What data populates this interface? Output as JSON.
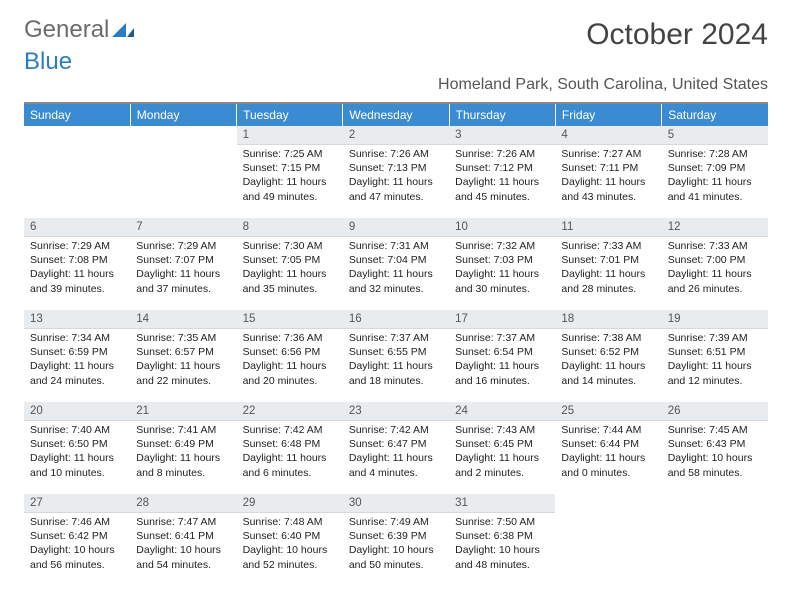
{
  "logo": {
    "word1": "General",
    "word2": "Blue"
  },
  "title": "October 2024",
  "location": "Homeland Park, South Carolina, United States",
  "colors": {
    "header_bg": "#3a8bd1",
    "header_text": "#ffffff",
    "daynum_bg": "#e9ecef",
    "body_text": "#222222",
    "logo_gray": "#6b6b6b",
    "logo_blue": "#2d7bc4"
  },
  "day_headers": [
    "Sunday",
    "Monday",
    "Tuesday",
    "Wednesday",
    "Thursday",
    "Friday",
    "Saturday"
  ],
  "weeks": [
    [
      null,
      null,
      {
        "n": "1",
        "sr": "7:25 AM",
        "ss": "7:15 PM",
        "dl": "11 hours and 49 minutes."
      },
      {
        "n": "2",
        "sr": "7:26 AM",
        "ss": "7:13 PM",
        "dl": "11 hours and 47 minutes."
      },
      {
        "n": "3",
        "sr": "7:26 AM",
        "ss": "7:12 PM",
        "dl": "11 hours and 45 minutes."
      },
      {
        "n": "4",
        "sr": "7:27 AM",
        "ss": "7:11 PM",
        "dl": "11 hours and 43 minutes."
      },
      {
        "n": "5",
        "sr": "7:28 AM",
        "ss": "7:09 PM",
        "dl": "11 hours and 41 minutes."
      }
    ],
    [
      {
        "n": "6",
        "sr": "7:29 AM",
        "ss": "7:08 PM",
        "dl": "11 hours and 39 minutes."
      },
      {
        "n": "7",
        "sr": "7:29 AM",
        "ss": "7:07 PM",
        "dl": "11 hours and 37 minutes."
      },
      {
        "n": "8",
        "sr": "7:30 AM",
        "ss": "7:05 PM",
        "dl": "11 hours and 35 minutes."
      },
      {
        "n": "9",
        "sr": "7:31 AM",
        "ss": "7:04 PM",
        "dl": "11 hours and 32 minutes."
      },
      {
        "n": "10",
        "sr": "7:32 AM",
        "ss": "7:03 PM",
        "dl": "11 hours and 30 minutes."
      },
      {
        "n": "11",
        "sr": "7:33 AM",
        "ss": "7:01 PM",
        "dl": "11 hours and 28 minutes."
      },
      {
        "n": "12",
        "sr": "7:33 AM",
        "ss": "7:00 PM",
        "dl": "11 hours and 26 minutes."
      }
    ],
    [
      {
        "n": "13",
        "sr": "7:34 AM",
        "ss": "6:59 PM",
        "dl": "11 hours and 24 minutes."
      },
      {
        "n": "14",
        "sr": "7:35 AM",
        "ss": "6:57 PM",
        "dl": "11 hours and 22 minutes."
      },
      {
        "n": "15",
        "sr": "7:36 AM",
        "ss": "6:56 PM",
        "dl": "11 hours and 20 minutes."
      },
      {
        "n": "16",
        "sr": "7:37 AM",
        "ss": "6:55 PM",
        "dl": "11 hours and 18 minutes."
      },
      {
        "n": "17",
        "sr": "7:37 AM",
        "ss": "6:54 PM",
        "dl": "11 hours and 16 minutes."
      },
      {
        "n": "18",
        "sr": "7:38 AM",
        "ss": "6:52 PM",
        "dl": "11 hours and 14 minutes."
      },
      {
        "n": "19",
        "sr": "7:39 AM",
        "ss": "6:51 PM",
        "dl": "11 hours and 12 minutes."
      }
    ],
    [
      {
        "n": "20",
        "sr": "7:40 AM",
        "ss": "6:50 PM",
        "dl": "11 hours and 10 minutes."
      },
      {
        "n": "21",
        "sr": "7:41 AM",
        "ss": "6:49 PM",
        "dl": "11 hours and 8 minutes."
      },
      {
        "n": "22",
        "sr": "7:42 AM",
        "ss": "6:48 PM",
        "dl": "11 hours and 6 minutes."
      },
      {
        "n": "23",
        "sr": "7:42 AM",
        "ss": "6:47 PM",
        "dl": "11 hours and 4 minutes."
      },
      {
        "n": "24",
        "sr": "7:43 AM",
        "ss": "6:45 PM",
        "dl": "11 hours and 2 minutes."
      },
      {
        "n": "25",
        "sr": "7:44 AM",
        "ss": "6:44 PM",
        "dl": "11 hours and 0 minutes."
      },
      {
        "n": "26",
        "sr": "7:45 AM",
        "ss": "6:43 PM",
        "dl": "10 hours and 58 minutes."
      }
    ],
    [
      {
        "n": "27",
        "sr": "7:46 AM",
        "ss": "6:42 PM",
        "dl": "10 hours and 56 minutes."
      },
      {
        "n": "28",
        "sr": "7:47 AM",
        "ss": "6:41 PM",
        "dl": "10 hours and 54 minutes."
      },
      {
        "n": "29",
        "sr": "7:48 AM",
        "ss": "6:40 PM",
        "dl": "10 hours and 52 minutes."
      },
      {
        "n": "30",
        "sr": "7:49 AM",
        "ss": "6:39 PM",
        "dl": "10 hours and 50 minutes."
      },
      {
        "n": "31",
        "sr": "7:50 AM",
        "ss": "6:38 PM",
        "dl": "10 hours and 48 minutes."
      },
      null,
      null
    ]
  ],
  "labels": {
    "sunrise": "Sunrise:",
    "sunset": "Sunset:",
    "daylight": "Daylight:"
  }
}
